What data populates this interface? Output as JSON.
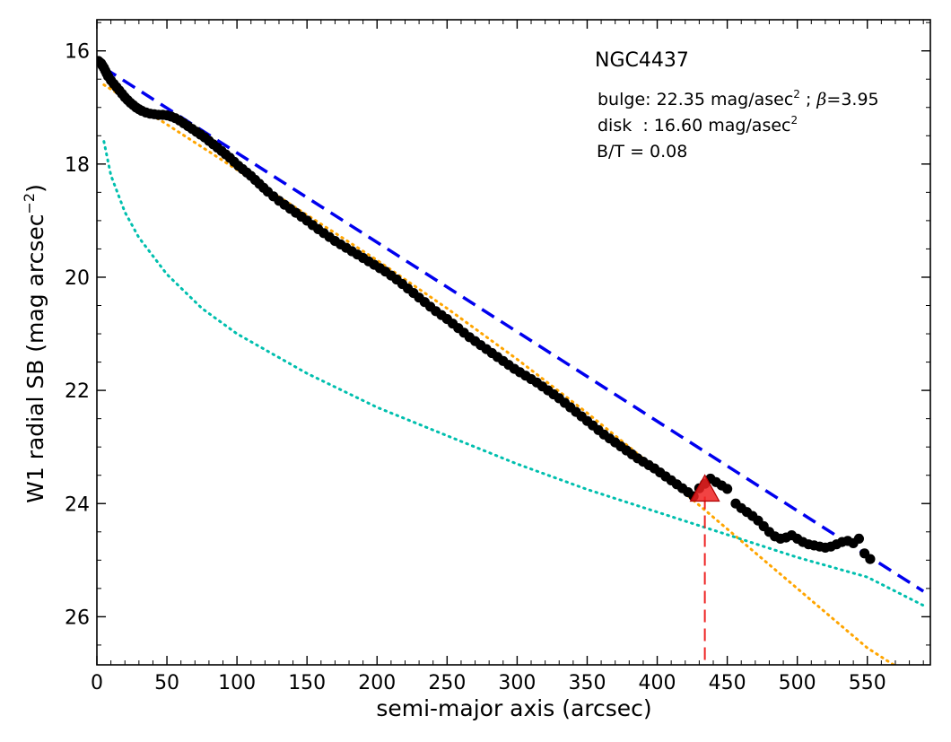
{
  "chart_data": {
    "type": "scatter",
    "title": "",
    "xlabel": "semi-major axis (arcsec)",
    "ylabel_main": "W1 radial SB (mag arcsec",
    "ylabel_sup": "−2",
    "ylabel_end": ")",
    "xlim": [
      0,
      595
    ],
    "ylim": [
      26.85,
      15.45
    ],
    "y_inverted": true,
    "grid": false,
    "x_ticks": [
      0,
      50,
      100,
      150,
      200,
      250,
      300,
      350,
      400,
      450,
      500,
      550
    ],
    "y_ticks": [
      16,
      18,
      20,
      22,
      24,
      26
    ],
    "annotations": {
      "galaxy": "NGC4437",
      "bulge_prefix": "bulge: 22.35 mag/asec",
      "bulge_sup": "2",
      "bulge_beta_sep": " ; ",
      "bulge_beta_sym": "β",
      "bulge_beta_val": "=3.95",
      "disk_prefix": "disk  : 16.60 mag/asec",
      "disk_sup": "2",
      "bt": "B/T = 0.08"
    },
    "colors": {
      "data": "#000000",
      "total_fit": "#0000ee",
      "disk_fit": "#ffa500",
      "bulge_fit": "#00bfae",
      "marker": "#ee2222"
    },
    "series": [
      {
        "role": "observed",
        "style": "points",
        "x": [
          1,
          2,
          3,
          4,
          5,
          6,
          7,
          8,
          10,
          12,
          14,
          16,
          18,
          20,
          22,
          24,
          26,
          28,
          30,
          32,
          35,
          38,
          41,
          44,
          47,
          50,
          53,
          56,
          59,
          62,
          65,
          68,
          71,
          74,
          77,
          80,
          83,
          86,
          89,
          92,
          95,
          98,
          101,
          104,
          107,
          110,
          113,
          116,
          119,
          122,
          126,
          130,
          134,
          138,
          142,
          146,
          150,
          154,
          158,
          162,
          166,
          170,
          174,
          178,
          182,
          186,
          190,
          194,
          198,
          202,
          206,
          210,
          214,
          218,
          222,
          226,
          230,
          234,
          238,
          242,
          246,
          250,
          254,
          258,
          262,
          266,
          270,
          274,
          278,
          282,
          286,
          290,
          294,
          298,
          302,
          306,
          310,
          314,
          318,
          322,
          326,
          330,
          334,
          338,
          342,
          346,
          350,
          354,
          358,
          362,
          366,
          370,
          374,
          378,
          382,
          386,
          390,
          394,
          398,
          402,
          406,
          410,
          414,
          418,
          422,
          426,
          430,
          434,
          438,
          442,
          446,
          450,
          456,
          460,
          464,
          468,
          472,
          476,
          480,
          484,
          488,
          492,
          496,
          500,
          504,
          508,
          512,
          516,
          520,
          524,
          528,
          532,
          536,
          540,
          544,
          548,
          552
        ],
        "y": [
          16.18,
          16.2,
          16.22,
          16.26,
          16.3,
          16.35,
          16.4,
          16.45,
          16.52,
          16.58,
          16.64,
          16.7,
          16.76,
          16.82,
          16.87,
          16.92,
          16.96,
          17.0,
          17.03,
          17.06,
          17.09,
          17.11,
          17.12,
          17.13,
          17.13,
          17.14,
          17.16,
          17.19,
          17.23,
          17.28,
          17.33,
          17.38,
          17.43,
          17.48,
          17.53,
          17.59,
          17.65,
          17.71,
          17.77,
          17.83,
          17.89,
          17.96,
          18.03,
          18.09,
          18.15,
          18.21,
          18.28,
          18.35,
          18.42,
          18.49,
          18.57,
          18.65,
          18.72,
          18.79,
          18.86,
          18.93,
          19.0,
          19.08,
          19.15,
          19.22,
          19.29,
          19.36,
          19.42,
          19.48,
          19.54,
          19.6,
          19.66,
          19.72,
          19.78,
          19.84,
          19.9,
          19.97,
          20.04,
          20.12,
          20.2,
          20.28,
          20.36,
          20.44,
          20.52,
          20.6,
          20.67,
          20.74,
          20.82,
          20.9,
          20.98,
          21.06,
          21.13,
          21.2,
          21.27,
          21.34,
          21.41,
          21.48,
          21.55,
          21.62,
          21.68,
          21.74,
          21.8,
          21.86,
          21.93,
          22.0,
          22.07,
          22.14,
          22.22,
          22.3,
          22.38,
          22.46,
          22.54,
          22.62,
          22.7,
          22.78,
          22.85,
          22.92,
          22.99,
          23.06,
          23.13,
          23.2,
          23.26,
          23.32,
          23.38,
          23.45,
          23.52,
          23.59,
          23.66,
          23.73,
          23.8,
          23.87,
          23.73,
          23.65,
          23.56,
          23.62,
          23.68,
          23.74,
          24.0,
          24.08,
          24.15,
          24.22,
          24.3,
          24.4,
          24.5,
          24.58,
          24.62,
          24.6,
          24.56,
          24.62,
          24.68,
          24.72,
          24.74,
          24.76,
          24.78,
          24.76,
          24.72,
          24.68,
          24.66,
          24.7,
          24.62,
          24.88,
          24.98
        ]
      },
      {
        "role": "total fit (bulge + disk)",
        "style": "dashed",
        "x": [
          5,
          590
        ],
        "y": [
          16.3,
          25.55
        ]
      },
      {
        "role": "disk component",
        "style": "dotted",
        "x": [
          5,
          50,
          100,
          150,
          200,
          250,
          300,
          350,
          400,
          450,
          500,
          550,
          575
        ],
        "y": [
          16.6,
          17.3,
          18.1,
          18.9,
          19.7,
          20.55,
          21.45,
          22.4,
          23.4,
          24.45,
          25.5,
          26.55,
          26.95
        ]
      },
      {
        "role": "bulge component",
        "style": "dotted",
        "x": [
          5,
          10,
          20,
          30,
          50,
          75,
          100,
          150,
          200,
          250,
          300,
          350,
          400,
          450,
          500,
          550,
          590
        ],
        "y": [
          17.6,
          18.2,
          18.85,
          19.3,
          19.95,
          20.55,
          21.0,
          21.7,
          22.3,
          22.8,
          23.3,
          23.75,
          24.15,
          24.55,
          24.95,
          25.3,
          25.8
        ]
      }
    ],
    "marker": {
      "shape": "triangle",
      "x": 434,
      "y": 23.75,
      "dropline_to": "x-axis"
    }
  }
}
